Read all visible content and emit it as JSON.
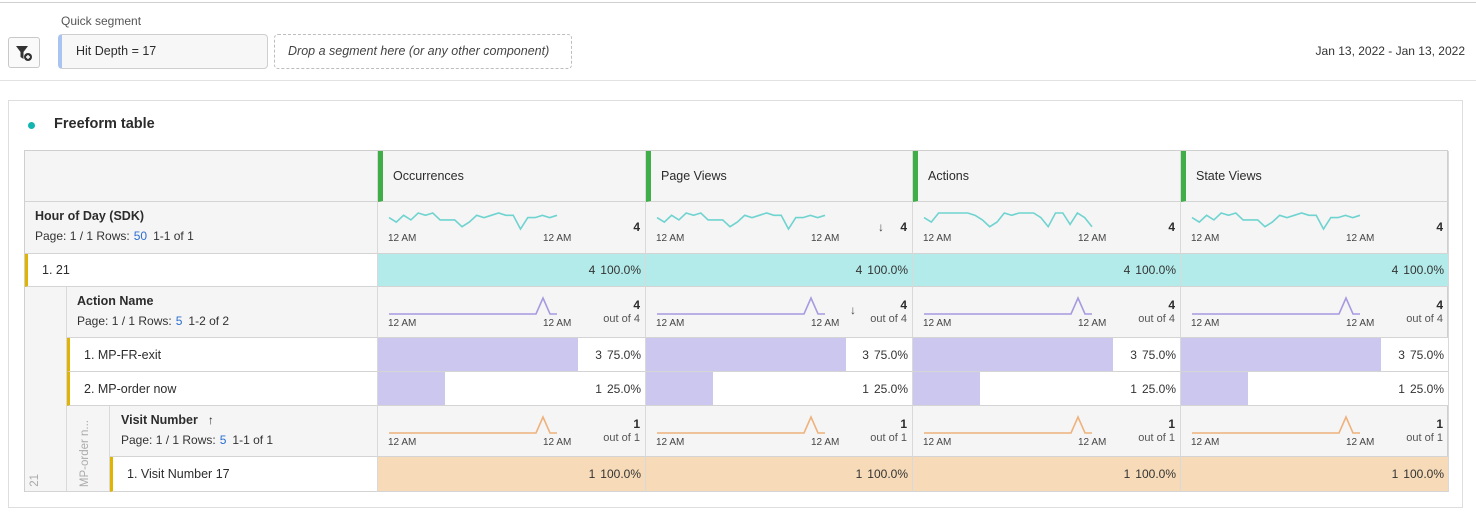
{
  "header": {
    "quick_segment_label": "Quick segment",
    "segment_value": "Hit Depth = 17",
    "drop_placeholder": "Drop a segment here (or any other component)",
    "date_range": "Jan 13, 2022 - Jan 13, 2022"
  },
  "panel": {
    "title": "Freeform table"
  },
  "colors": {
    "teal": "#6fd3d0",
    "teal_fill": "#b3ebea",
    "purple": "#a89ae0",
    "purple_fill": "#ccc7ee",
    "orange": "#efb27c",
    "orange_fill": "#f7dbb8",
    "green": "#3fae49"
  },
  "metrics": [
    "Occurrences",
    "Page Views",
    "Actions",
    "State Views"
  ],
  "spark_ticks": {
    "start": "12 AM",
    "end": "12 AM"
  },
  "sparklines": {
    "hour": [
      [
        5,
        3,
        6,
        4,
        7,
        6,
        7,
        4,
        4,
        4,
        1,
        3,
        6,
        5,
        6,
        7,
        6,
        6,
        0,
        5,
        5,
        6,
        5,
        6
      ],
      [
        5,
        3,
        6,
        4,
        7,
        6,
        7,
        4,
        4,
        4,
        1,
        3,
        6,
        5,
        6,
        7,
        6,
        6,
        0,
        5,
        5,
        6,
        5,
        6
      ],
      [
        5,
        3,
        7,
        7,
        7,
        7,
        7,
        6,
        4,
        1,
        3,
        7,
        6,
        7,
        7,
        7,
        5,
        1,
        7,
        7,
        2,
        7,
        5,
        1
      ],
      [
        5,
        3,
        6,
        4,
        7,
        6,
        7,
        4,
        4,
        4,
        1,
        3,
        6,
        5,
        6,
        7,
        6,
        6,
        0,
        5,
        5,
        6,
        5,
        6
      ]
    ],
    "single": [
      0,
      0,
      0,
      0,
      0,
      0,
      0,
      0,
      0,
      0,
      0,
      0,
      0,
      0,
      0,
      0,
      0,
      0,
      0,
      0,
      0,
      0,
      1,
      0,
      0
    ]
  },
  "levels": [
    {
      "title": "Hour of Day (SDK)",
      "page": "Page: 1 / 1 Rows:",
      "rows": "50",
      "range": "1-1 of 1",
      "totals": [
        "4",
        "4",
        "4",
        "4"
      ],
      "out_of": [
        "",
        "",
        "",
        ""
      ],
      "sort_col": 1,
      "sort_dir": "↓"
    },
    {
      "title": "Action Name",
      "page": "Page: 1 / 1 Rows:",
      "rows": "5",
      "range": "1-2 of 2",
      "totals": [
        "4",
        "4",
        "4",
        "4"
      ],
      "out_of": [
        "out of 4",
        "out of 4",
        "out of 4",
        "out of 4"
      ],
      "sort_col": 1,
      "sort_dir": "↓"
    },
    {
      "title": "Visit Number",
      "page": "Page: 1 / 1 Rows:",
      "rows": "5",
      "range": "1-1 of 1",
      "totals": [
        "1",
        "1",
        "1",
        "1"
      ],
      "out_of": [
        "out of 1",
        "out of 1",
        "out of 1",
        "out of 1"
      ],
      "title_sort": "↑"
    }
  ],
  "rows": [
    {
      "label": "1. 21",
      "values": [
        "4",
        "4",
        "4",
        "4"
      ],
      "pct": [
        "100.0%",
        "100.0%",
        "100.0%",
        "100.0%"
      ],
      "share": 1.0
    },
    {
      "label": "1. MP-FR-exit",
      "values": [
        "3",
        "3",
        "3",
        "3"
      ],
      "pct": [
        "75.0%",
        "75.0%",
        "75.0%",
        "75.0%"
      ],
      "share": 0.75
    },
    {
      "label": "2. MP-order now",
      "values": [
        "1",
        "1",
        "1",
        "1"
      ],
      "pct": [
        "25.0%",
        "25.0%",
        "25.0%",
        "25.0%"
      ],
      "share": 0.25
    },
    {
      "label": "1. Visit Number 17",
      "values": [
        "1",
        "1",
        "1",
        "1"
      ],
      "pct": [
        "100.0%",
        "100.0%",
        "100.0%",
        "100.0%"
      ],
      "share": 1.0
    }
  ],
  "side_labels": {
    "level1": "21",
    "level2": "MP-order n..."
  }
}
